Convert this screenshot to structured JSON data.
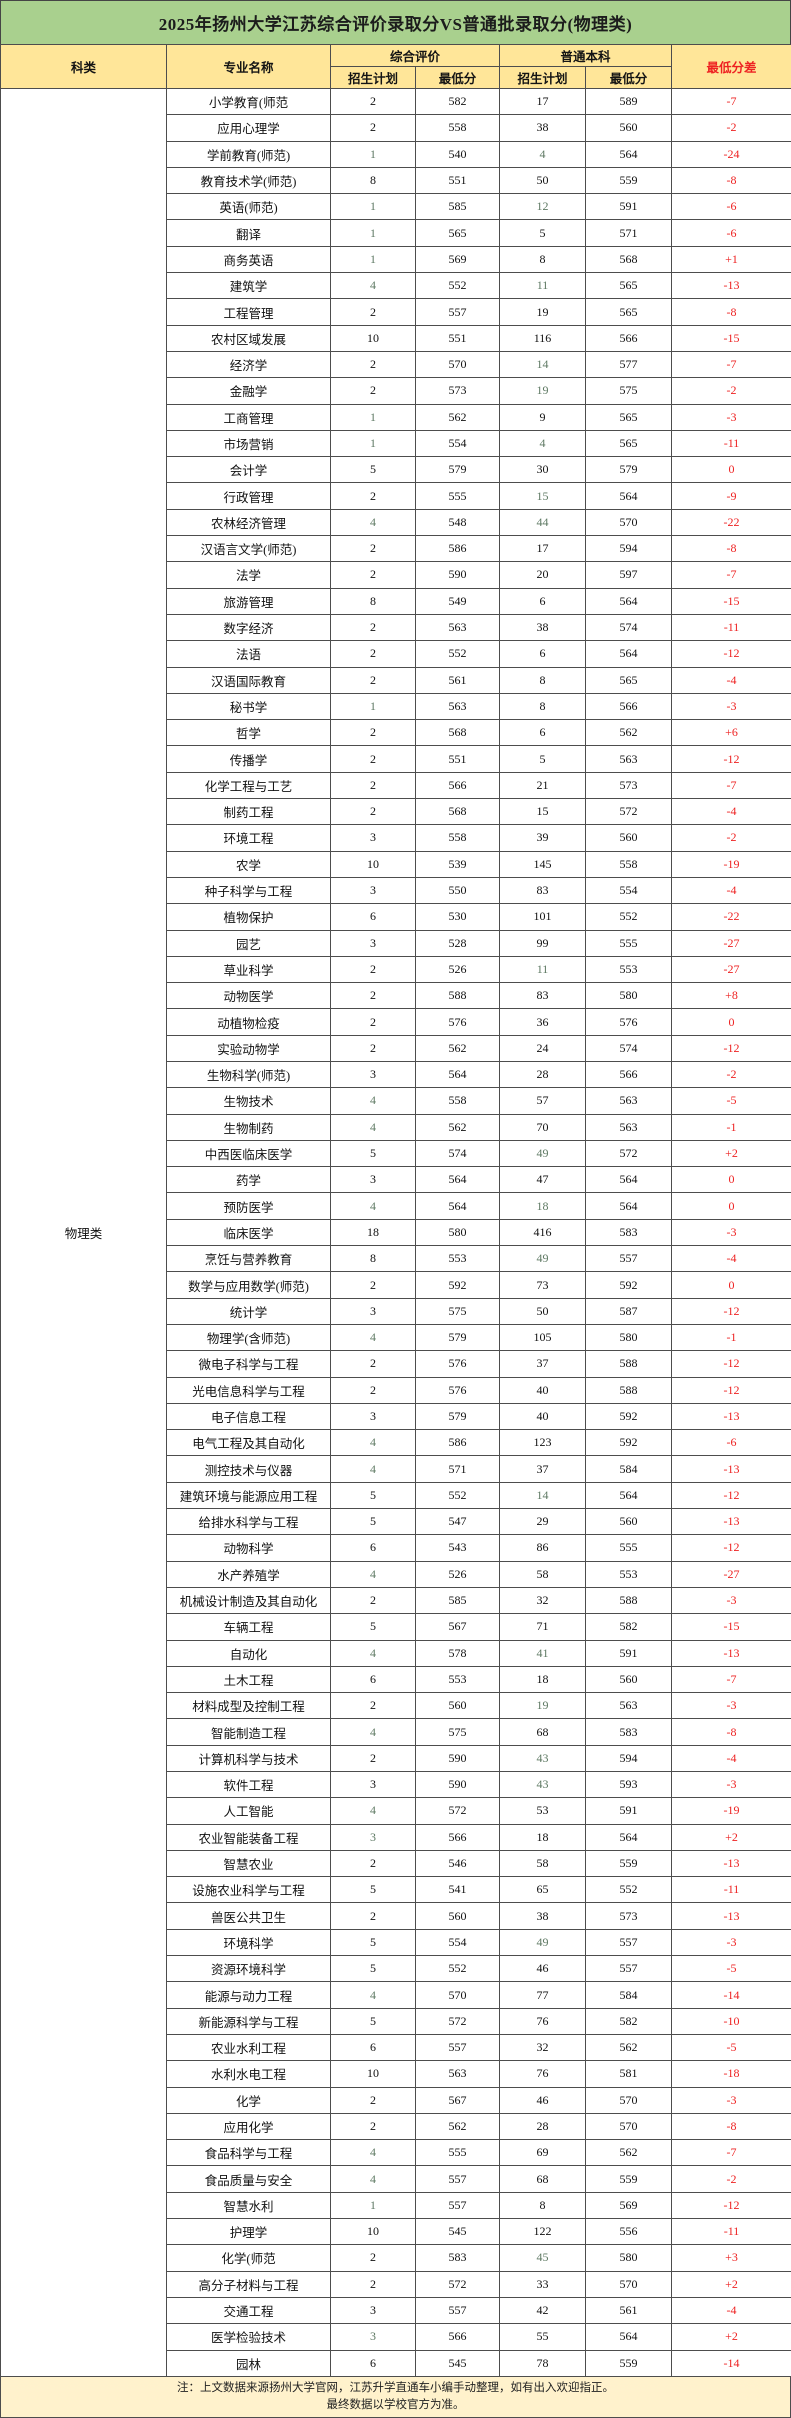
{
  "title": "2025年扬州大学江苏综合评价录取分VS普通批录取分(物理类)",
  "colors": {
    "title_bg": "#a9d08e",
    "header_bg": "#ffe699",
    "accent_red": "#ee2222",
    "muted_plan_green": "#5f7a64",
    "grid": "#4d4d4d",
    "note_bg": "#fff2cc"
  },
  "table": {
    "col_category": "科类",
    "col_major": "专业名称",
    "group_comprehensive": "综合评价",
    "group_regular": "普通本科",
    "col_plan": "招生计划",
    "col_min": "最低分",
    "col_diff": "最低分差",
    "category_value": "物理类",
    "row_fields": [
      "major",
      "ce_plan",
      "ce_min",
      "rb_plan",
      "rb_min",
      "diff",
      "muted_flags(c=ce_plan,r=rb_plan)"
    ],
    "rows": [
      [
        "小学教育(师范",
        "2",
        "582",
        "17",
        "589",
        "-7"
      ],
      [
        "应用心理学",
        "2",
        "558",
        "38",
        "560",
        "-2"
      ],
      [
        "学前教育(师范)",
        "1",
        "540",
        "4",
        "564",
        "-24",
        "cr"
      ],
      [
        "教育技术学(师范)",
        "8",
        "551",
        "50",
        "559",
        "-8"
      ],
      [
        "英语(师范)",
        "1",
        "585",
        "12",
        "591",
        "-6",
        "cr"
      ],
      [
        "翻译",
        "1",
        "565",
        "5",
        "571",
        "-6",
        "c"
      ],
      [
        "商务英语",
        "1",
        "569",
        "8",
        "568",
        "+1",
        "c"
      ],
      [
        "建筑学",
        "4",
        "552",
        "11",
        "565",
        "-13",
        "cr"
      ],
      [
        "工程管理",
        "2",
        "557",
        "19",
        "565",
        "-8"
      ],
      [
        "农村区域发展",
        "10",
        "551",
        "116",
        "566",
        "-15"
      ],
      [
        "经济学",
        "2",
        "570",
        "14",
        "577",
        "-7",
        "r"
      ],
      [
        "金融学",
        "2",
        "573",
        "19",
        "575",
        "-2",
        "r"
      ],
      [
        "工商管理",
        "1",
        "562",
        "9",
        "565",
        "-3",
        "c"
      ],
      [
        "市场营销",
        "1",
        "554",
        "4",
        "565",
        "-11",
        "cr"
      ],
      [
        "会计学",
        "5",
        "579",
        "30",
        "579",
        "0"
      ],
      [
        "行政管理",
        "2",
        "555",
        "15",
        "564",
        "-9",
        "r"
      ],
      [
        "农林经济管理",
        "4",
        "548",
        "44",
        "570",
        "-22",
        "cr"
      ],
      [
        "汉语言文学(师范)",
        "2",
        "586",
        "17",
        "594",
        "-8"
      ],
      [
        "法学",
        "2",
        "590",
        "20",
        "597",
        "-7"
      ],
      [
        "旅游管理",
        "8",
        "549",
        "6",
        "564",
        "-15"
      ],
      [
        "数字经济",
        "2",
        "563",
        "38",
        "574",
        "-11"
      ],
      [
        "法语",
        "2",
        "552",
        "6",
        "564",
        "-12"
      ],
      [
        "汉语国际教育",
        "2",
        "561",
        "8",
        "565",
        "-4"
      ],
      [
        "秘书学",
        "1",
        "563",
        "8",
        "566",
        "-3",
        "c"
      ],
      [
        "哲学",
        "2",
        "568",
        "6",
        "562",
        "+6"
      ],
      [
        "传播学",
        "2",
        "551",
        "5",
        "563",
        "-12"
      ],
      [
        "化学工程与工艺",
        "2",
        "566",
        "21",
        "573",
        "-7"
      ],
      [
        "制药工程",
        "2",
        "568",
        "15",
        "572",
        "-4"
      ],
      [
        "环境工程",
        "3",
        "558",
        "39",
        "560",
        "-2"
      ],
      [
        "农学",
        "10",
        "539",
        "145",
        "558",
        "-19"
      ],
      [
        "种子科学与工程",
        "3",
        "550",
        "83",
        "554",
        "-4"
      ],
      [
        "植物保护",
        "6",
        "530",
        "101",
        "552",
        "-22"
      ],
      [
        "园艺",
        "3",
        "528",
        "99",
        "555",
        "-27"
      ],
      [
        "草业科学",
        "2",
        "526",
        "11",
        "553",
        "-27",
        "r"
      ],
      [
        "动物医学",
        "2",
        "588",
        "83",
        "580",
        "+8"
      ],
      [
        "动植物检疫",
        "2",
        "576",
        "36",
        "576",
        "0"
      ],
      [
        "实验动物学",
        "2",
        "562",
        "24",
        "574",
        "-12"
      ],
      [
        "生物科学(师范)",
        "3",
        "564",
        "28",
        "566",
        "-2"
      ],
      [
        "生物技术",
        "4",
        "558",
        "57",
        "563",
        "-5",
        "c"
      ],
      [
        "生物制药",
        "4",
        "562",
        "70",
        "563",
        "-1",
        "c"
      ],
      [
        "中西医临床医学",
        "5",
        "574",
        "49",
        "572",
        "+2",
        "r"
      ],
      [
        "药学",
        "3",
        "564",
        "47",
        "564",
        "0"
      ],
      [
        "预防医学",
        "4",
        "564",
        "18",
        "564",
        "0",
        "cr"
      ],
      [
        "临床医学",
        "18",
        "580",
        "416",
        "583",
        "-3"
      ],
      [
        "烹饪与营养教育",
        "8",
        "553",
        "49",
        "557",
        "-4",
        "r"
      ],
      [
        "数学与应用数学(师范)",
        "2",
        "592",
        "73",
        "592",
        "0"
      ],
      [
        "统计学",
        "3",
        "575",
        "50",
        "587",
        "-12"
      ],
      [
        "物理学(含师范)",
        "4",
        "579",
        "105",
        "580",
        "-1",
        "c"
      ],
      [
        "微电子科学与工程",
        "2",
        "576",
        "37",
        "588",
        "-12"
      ],
      [
        "光电信息科学与工程",
        "2",
        "576",
        "40",
        "588",
        "-12"
      ],
      [
        "电子信息工程",
        "3",
        "579",
        "40",
        "592",
        "-13"
      ],
      [
        "电气工程及其自动化",
        "4",
        "586",
        "123",
        "592",
        "-6",
        "c"
      ],
      [
        "测控技术与仪器",
        "4",
        "571",
        "37",
        "584",
        "-13",
        "c"
      ],
      [
        "建筑环境与能源应用工程",
        "5",
        "552",
        "14",
        "564",
        "-12",
        "r"
      ],
      [
        "给排水科学与工程",
        "5",
        "547",
        "29",
        "560",
        "-13"
      ],
      [
        "动物科学",
        "6",
        "543",
        "86",
        "555",
        "-12"
      ],
      [
        "水产养殖学",
        "4",
        "526",
        "58",
        "553",
        "-27",
        "c"
      ],
      [
        "机械设计制造及其自动化",
        "2",
        "585",
        "32",
        "588",
        "-3"
      ],
      [
        "车辆工程",
        "5",
        "567",
        "71",
        "582",
        "-15"
      ],
      [
        "自动化",
        "4",
        "578",
        "41",
        "591",
        "-13",
        "cr"
      ],
      [
        "土木工程",
        "6",
        "553",
        "18",
        "560",
        "-7"
      ],
      [
        "材料成型及控制工程",
        "2",
        "560",
        "19",
        "563",
        "-3",
        "r"
      ],
      [
        "智能制造工程",
        "4",
        "575",
        "68",
        "583",
        "-8",
        "c"
      ],
      [
        "计算机科学与技术",
        "2",
        "590",
        "43",
        "594",
        "-4",
        "r"
      ],
      [
        "软件工程",
        "3",
        "590",
        "43",
        "593",
        "-3",
        "r"
      ],
      [
        "人工智能",
        "4",
        "572",
        "53",
        "591",
        "-19",
        "c"
      ],
      [
        "农业智能装备工程",
        "3",
        "566",
        "18",
        "564",
        "+2",
        "c"
      ],
      [
        "智慧农业",
        "2",
        "546",
        "58",
        "559",
        "-13"
      ],
      [
        "设施农业科学与工程",
        "5",
        "541",
        "65",
        "552",
        "-11"
      ],
      [
        "兽医公共卫生",
        "2",
        "560",
        "38",
        "573",
        "-13"
      ],
      [
        "环境科学",
        "5",
        "554",
        "49",
        "557",
        "-3",
        "r"
      ],
      [
        "资源环境科学",
        "5",
        "552",
        "46",
        "557",
        "-5"
      ],
      [
        "能源与动力工程",
        "4",
        "570",
        "77",
        "584",
        "-14",
        "c"
      ],
      [
        "新能源科学与工程",
        "5",
        "572",
        "76",
        "582",
        "-10"
      ],
      [
        "农业水利工程",
        "6",
        "557",
        "32",
        "562",
        "-5"
      ],
      [
        "水利水电工程",
        "10",
        "563",
        "76",
        "581",
        "-18"
      ],
      [
        "化学",
        "2",
        "567",
        "46",
        "570",
        "-3"
      ],
      [
        "应用化学",
        "2",
        "562",
        "28",
        "570",
        "-8"
      ],
      [
        "食品科学与工程",
        "4",
        "555",
        "69",
        "562",
        "-7",
        "c"
      ],
      [
        "食品质量与安全",
        "4",
        "557",
        "68",
        "559",
        "-2",
        "c"
      ],
      [
        "智慧水利",
        "1",
        "557",
        "8",
        "569",
        "-12",
        "c"
      ],
      [
        "护理学",
        "10",
        "545",
        "122",
        "556",
        "-11"
      ],
      [
        "化学(师范",
        "2",
        "583",
        "45",
        "580",
        "+3",
        "r"
      ],
      [
        "高分子材料与工程",
        "2",
        "572",
        "33",
        "570",
        "+2"
      ],
      [
        "交通工程",
        "3",
        "557",
        "42",
        "561",
        "-4"
      ],
      [
        "医学检验技术",
        "3",
        "566",
        "55",
        "564",
        "+2",
        "c"
      ],
      [
        "园林",
        "6",
        "545",
        "78",
        "559",
        "-14"
      ]
    ]
  },
  "note": {
    "line1": "注：上文数据来源扬州大学官网，江苏升学直通车小编手动整理，如有出入欢迎指正。",
    "line2": "最终数据以学校官方为准。"
  }
}
